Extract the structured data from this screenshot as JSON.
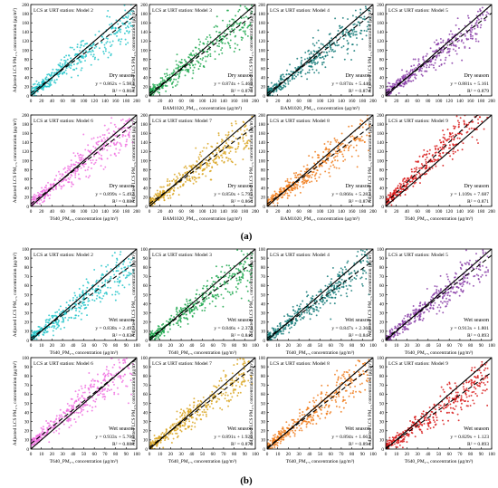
{
  "figure": {
    "part_labels": [
      "(a)",
      "(b)"
    ]
  },
  "chart_data": [
    {
      "type": "scatter",
      "group": "a",
      "title": "LCS at URT station: Model 2",
      "season": "Dry season",
      "equation": "y = 0.862x + 5.983",
      "r2": "R² = 0.863",
      "slope": 0.862,
      "intercept": 5.983,
      "color": "#22c4c9",
      "xlabel": "",
      "ylabel": "Adjusted LCS PM₂.₅ concentration (μg/m³)",
      "xlim": [
        0,
        200
      ],
      "ylim": [
        0,
        200
      ],
      "xticks": [
        0,
        20,
        40,
        60,
        80,
        100,
        120,
        140,
        160,
        180,
        200
      ],
      "yticks": [
        0,
        20,
        40,
        60,
        80,
        100,
        120,
        140,
        160,
        180,
        200
      ]
    },
    {
      "type": "scatter",
      "group": "a",
      "title": "LCS at URT station: Model 3",
      "season": "Dry season",
      "equation": "y = 0.874x + 5.468",
      "r2": "R² = 0.873",
      "slope": 0.874,
      "intercept": 5.468,
      "color": "#1fa84f",
      "xlabel": "BAM1020_PM₂.₅ concentration (μg/m³)",
      "ylabel": "Adjusted LCS PM₂.₅ concentration (μg/m³)",
      "xlim": [
        0,
        200
      ],
      "ylim": [
        0,
        200
      ],
      "xticks": [
        0,
        20,
        40,
        60,
        80,
        100,
        120,
        140,
        160,
        180,
        200
      ],
      "yticks": [
        0,
        20,
        40,
        60,
        80,
        100,
        120,
        140,
        160,
        180,
        200
      ]
    },
    {
      "type": "scatter",
      "group": "a",
      "title": "LCS at URT station: Model 4",
      "season": "Dry season",
      "equation": "y = 0.874x + 5.446",
      "r2": "R² = 0.874",
      "slope": 0.874,
      "intercept": 5.446,
      "color": "#137a78",
      "xlabel": "BAM1020_PM₂.₅ concentration (μg/m³)",
      "ylabel": "Adjusted LCS PM₂.₅ concentration (μg/m³)",
      "xlim": [
        0,
        200
      ],
      "ylim": [
        0,
        200
      ],
      "xticks": [
        0,
        20,
        40,
        60,
        80,
        100,
        120,
        140,
        160,
        180,
        200
      ],
      "yticks": [
        0,
        20,
        40,
        60,
        80,
        100,
        120,
        140,
        160,
        180,
        200
      ]
    },
    {
      "type": "scatter",
      "group": "a",
      "title": "LCS at URT station: Model 5",
      "season": "Dry season",
      "equation": "y = 0.881x + 5.161",
      "r2": "R² = 0.879",
      "slope": 0.881,
      "intercept": 5.161,
      "color": "#8a3ea8",
      "xlabel": "",
      "ylabel": "Adjusted LCS PM₂.₅ concentration (μg/m³)",
      "xlim": [
        0,
        200
      ],
      "ylim": [
        0,
        200
      ],
      "xticks": [
        0,
        20,
        40,
        60,
        80,
        100,
        120,
        140,
        160,
        180,
        200
      ],
      "yticks": [
        0,
        20,
        40,
        60,
        80,
        100,
        120,
        140,
        160,
        180,
        200
      ]
    },
    {
      "type": "scatter",
      "group": "a",
      "title": "LCS at URT station: Model 6",
      "season": "Dry season",
      "equation": "y = 0.899x + 5.492",
      "r2": "R² = 0.880",
      "slope": 0.899,
      "intercept": 5.492,
      "color": "#f070e0",
      "xlabel": "T640_PM₂.₅ concentration (μg/m³)",
      "ylabel": "Adjusted LCS PM₂.₅ concentration (μg/m³)",
      "xlim": [
        0,
        200
      ],
      "ylim": [
        0,
        200
      ],
      "xticks": [
        0,
        20,
        40,
        60,
        80,
        100,
        120,
        140,
        160,
        180,
        200
      ],
      "yticks": [
        0,
        20,
        40,
        60,
        80,
        100,
        120,
        140,
        160,
        180,
        200
      ]
    },
    {
      "type": "scatter",
      "group": "a",
      "title": "LCS at URT station: Model 7",
      "season": "Dry season",
      "equation": "y = 0.850x + 5.795",
      "r2": "R² = 0.864",
      "slope": 0.85,
      "intercept": 5.795,
      "color": "#d9a520",
      "xlabel": "BAM1020_PM₂.₅ concentration (μg/m³)",
      "ylabel": "Adjusted LCS PM₂.₅ concentration (μg/m³)",
      "xlim": [
        0,
        200
      ],
      "ylim": [
        0,
        200
      ],
      "xticks": [
        0,
        20,
        40,
        60,
        80,
        100,
        120,
        140,
        160,
        180,
        200
      ],
      "yticks": [
        0,
        20,
        40,
        60,
        80,
        100,
        120,
        140,
        160,
        180,
        200
      ]
    },
    {
      "type": "scatter",
      "group": "a",
      "title": "LCS at URT station: Model 8",
      "season": "Dry season",
      "equation": "y = 0.866x + 5.283",
      "r2": "R² = 0.876",
      "slope": 0.866,
      "intercept": 5.283,
      "color": "#f07d1c",
      "xlabel": "BAM1020_PM₂.₅ concentration (μg/m³)",
      "ylabel": "Adjusted LCS PM₂.₅ concentration (μg/m³)",
      "xlim": [
        0,
        200
      ],
      "ylim": [
        0,
        200
      ],
      "xticks": [
        0,
        20,
        40,
        60,
        80,
        100,
        120,
        140,
        160,
        180,
        200
      ],
      "yticks": [
        0,
        20,
        40,
        60,
        80,
        100,
        120,
        140,
        160,
        180,
        200
      ]
    },
    {
      "type": "scatter",
      "group": "a",
      "title": "LCS at URT station: Model 9",
      "season": "Dry season",
      "equation": "y = 1.109x + 7.687",
      "r2": "R² = 0.871",
      "slope": 1.109,
      "intercept": 7.687,
      "color": "#d81818",
      "xlabel": "T640_PM₂.₅ concentration (μg/m³)",
      "ylabel": "Adjusted LCS PM₂.₅ concentration (μg/m³)",
      "xlim": [
        0,
        200
      ],
      "ylim": [
        0,
        200
      ],
      "xticks": [
        0,
        20,
        40,
        60,
        80,
        100,
        120,
        140,
        160,
        180,
        200
      ],
      "yticks": [
        0,
        20,
        40,
        60,
        80,
        100,
        120,
        140,
        160,
        180,
        200
      ]
    },
    {
      "type": "scatter",
      "group": "b",
      "title": "LCS at URT station: Model 2",
      "season": "Wet season",
      "equation": "y = 0.838x + 2.497",
      "r2": "R² = 0.838",
      "slope": 0.838,
      "intercept": 2.497,
      "color": "#22c4c9",
      "xlabel": "T640_PM₂.₅ concentration (μg/m³)",
      "ylabel": "Adjusted LCS PM₂.₅ concentration (μg/m³)",
      "xlim": [
        0,
        100
      ],
      "ylim": [
        0,
        100
      ],
      "xticks": [
        0,
        10,
        20,
        30,
        40,
        50,
        60,
        70,
        80,
        90,
        100
      ],
      "yticks": [
        0,
        10,
        20,
        30,
        40,
        50,
        60,
        70,
        80,
        90,
        100
      ]
    },
    {
      "type": "scatter",
      "group": "b",
      "title": "LCS at URT station: Model 3",
      "season": "Wet season",
      "equation": "y = 0.846x + 2.374",
      "r2": "R² = 0.846",
      "slope": 0.846,
      "intercept": 2.374,
      "color": "#1fa84f",
      "xlabel": "T640_PM₂.₅ concentration (μg/m³)",
      "ylabel": "Adjusted LCS PM₂.₅ concentration (μg/m³)",
      "xlim": [
        0,
        100
      ],
      "ylim": [
        0,
        100
      ],
      "xticks": [
        0,
        10,
        20,
        30,
        40,
        50,
        60,
        70,
        80,
        90,
        100
      ],
      "yticks": [
        0,
        10,
        20,
        30,
        40,
        50,
        60,
        70,
        80,
        90,
        100
      ]
    },
    {
      "type": "scatter",
      "group": "b",
      "title": "LCS at URT station: Model 4",
      "season": "Wet season",
      "equation": "y = 0.847x + 2.368",
      "r2": "R² = 0.847",
      "slope": 0.847,
      "intercept": 2.368,
      "color": "#137a78",
      "xlabel": "T640_PM₂.₅ concentration (μg/m³)",
      "ylabel": "Adjusted LCS PM₂.₅ concentration (μg/m³)",
      "xlim": [
        0,
        100
      ],
      "ylim": [
        0,
        100
      ],
      "xticks": [
        0,
        10,
        20,
        30,
        40,
        50,
        60,
        70,
        80,
        90,
        100
      ],
      "yticks": [
        0,
        10,
        20,
        30,
        40,
        50,
        60,
        70,
        80,
        90,
        100
      ]
    },
    {
      "type": "scatter",
      "group": "b",
      "title": "LCS at URT station: Model 5",
      "season": "Wet season",
      "equation": "y = 0.913x + 1.801",
      "r2": "R² = 0.893",
      "slope": 0.913,
      "intercept": 1.801,
      "color": "#8a3ea8",
      "xlabel": "T640_PM₂.₅ concentration (μg/m³)",
      "ylabel": "Adjusted LCS PM₂.₅ concentration (μg/m³)",
      "xlim": [
        0,
        100
      ],
      "ylim": [
        0,
        100
      ],
      "xticks": [
        0,
        10,
        20,
        30,
        40,
        50,
        60,
        70,
        80,
        90,
        100
      ],
      "yticks": [
        0,
        10,
        20,
        30,
        40,
        50,
        60,
        70,
        80,
        90,
        100
      ]
    },
    {
      "type": "scatter",
      "group": "b",
      "title": "LCS at URT station: Model 6",
      "season": "Wet season",
      "equation": "y = 0.933x + 5.706",
      "r2": "R² = 0.888",
      "slope": 0.933,
      "intercept": 5.706,
      "color": "#f070e0",
      "xlabel": "T640_PM₂.₅ concentration (μg/m³)",
      "ylabel": "Adjusted LCS PM₂.₅ concentration (μg/m³)",
      "xlim": [
        0,
        100
      ],
      "ylim": [
        0,
        100
      ],
      "xticks": [
        0,
        10,
        20,
        30,
        40,
        50,
        60,
        70,
        80,
        90,
        100
      ],
      "yticks": [
        0,
        10,
        20,
        30,
        40,
        50,
        60,
        70,
        80,
        90,
        100
      ]
    },
    {
      "type": "scatter",
      "group": "b",
      "title": "LCS at URT station: Model 7",
      "season": "Wet season",
      "equation": "y = 0.891x + 1.926",
      "r2": "R² = 0.879",
      "slope": 0.891,
      "intercept": 1.926,
      "color": "#d9a520",
      "xlabel": "T640_PM₂.₅ concentration (μg/m³)",
      "ylabel": "Adjusted LCS PM₂.₅ concentration (μg/m³)",
      "xlim": [
        0,
        100
      ],
      "ylim": [
        0,
        100
      ],
      "xticks": [
        0,
        10,
        20,
        30,
        40,
        50,
        60,
        70,
        80,
        90,
        100
      ],
      "yticks": [
        0,
        10,
        20,
        30,
        40,
        50,
        60,
        70,
        80,
        90,
        100
      ]
    },
    {
      "type": "scatter",
      "group": "b",
      "title": "LCS at URT station: Model 8",
      "season": "Wet season",
      "equation": "y = 0.894x + 1.663",
      "r2": "R² = 0.894",
      "slope": 0.894,
      "intercept": 1.663,
      "color": "#f07d1c",
      "xlabel": "T640_PM₂.₅ concentration (μg/m³)",
      "ylabel": "Adjusted LCS PM₂.₅ concentration (μg/m³)",
      "xlim": [
        0,
        100
      ],
      "ylim": [
        0,
        100
      ],
      "xticks": [
        0,
        10,
        20,
        30,
        40,
        50,
        60,
        70,
        80,
        90,
        100
      ],
      "yticks": [
        0,
        10,
        20,
        30,
        40,
        50,
        60,
        70,
        80,
        90,
        100
      ]
    },
    {
      "type": "scatter",
      "group": "b",
      "title": "LCS at URT station: Model 9",
      "season": "Wet season",
      "equation": "y = 0.829x + 1.123",
      "r2": "R² = 0.893",
      "slope": 0.829,
      "intercept": 1.123,
      "color": "#d81818",
      "xlabel": "T640_PM₂.₅ concentration (μg/m³)",
      "ylabel": "Adjusted LCS PM₂.₅ concentration (μg/m³)",
      "xlim": [
        0,
        100
      ],
      "ylim": [
        0,
        100
      ],
      "xticks": [
        0,
        10,
        20,
        30,
        40,
        50,
        60,
        70,
        80,
        90,
        100
      ],
      "yticks": [
        0,
        10,
        20,
        30,
        40,
        50,
        60,
        70,
        80,
        90,
        100
      ]
    }
  ]
}
